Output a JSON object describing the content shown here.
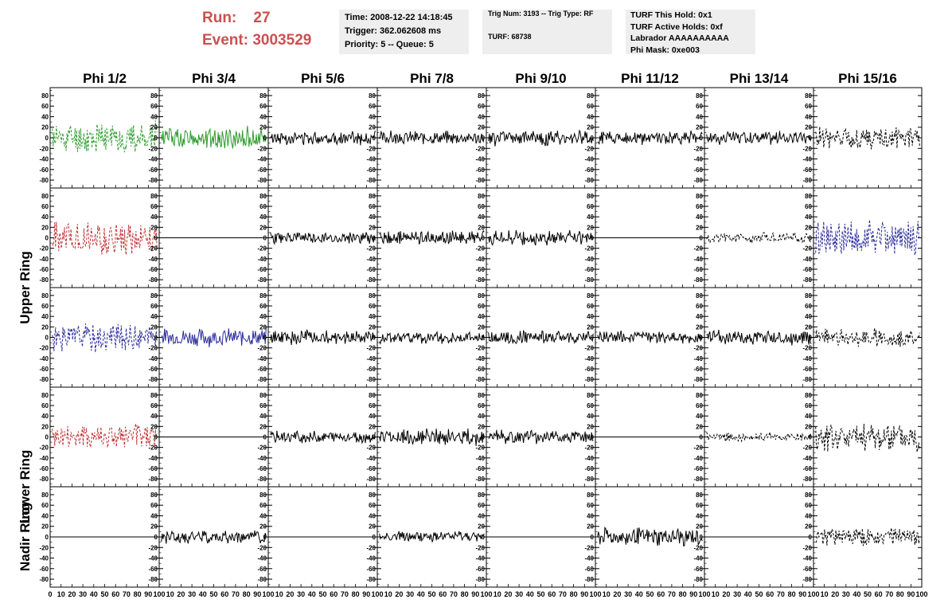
{
  "header": {
    "run_label": "Run:",
    "run_value": "27",
    "event_label": "Event:",
    "event_value": "3003529",
    "box1": [
      "Time: 2008-12-22 14:18:45",
      "Trigger: 362.062608 ms",
      "Priority: 5 -- Queue: 5"
    ],
    "box2": [
      "Trig Num: 3193 -- Trig Type: RF",
      "TURF: 68738"
    ],
    "box3": [
      "TURF This Hold: 0x1",
      "TURF Active Holds: 0xf",
      "Labrador AAAAAAAAAA",
      "Phi Mask: 0xe003"
    ]
  },
  "colors": {
    "run_event": "#cc5050",
    "green": "#2e9b2e",
    "red": "#c03030",
    "blue": "#2a2a9a",
    "black": "#000000",
    "box_bg": "#eeeeee"
  },
  "chart_data": {
    "type": "line",
    "columns": [
      "Phi 1/2",
      "Phi 3/4",
      "Phi 5/6",
      "Phi 7/8",
      "Phi 9/10",
      "Phi 11/12",
      "Phi 13/14",
      "Phi 15/16"
    ],
    "ring_labels": [
      "Upper Ring",
      "Lower Ring",
      "Nadir Ring"
    ],
    "ylim": [
      -95,
      95
    ],
    "xlim": [
      0,
      100
    ],
    "y_ticks": [
      80,
      60,
      40,
      20,
      0,
      -20,
      -40,
      -60,
      -80
    ],
    "y_tick_labels": [
      "80",
      "60",
      "40",
      "20",
      "0",
      "-20",
      "-40",
      "-60",
      "-80"
    ],
    "x_tick_labels_first": [
      "0",
      "10",
      "20",
      "30",
      "40",
      "50",
      "60",
      "70",
      "80",
      "90",
      "100"
    ],
    "x_tick_labels": [
      "10",
      "20",
      "30",
      "40",
      "50",
      "60",
      "70",
      "80",
      "90",
      "100"
    ],
    "panels": [
      [
        {
          "color": "green",
          "dash": true,
          "amp": 28,
          "seed": 11
        },
        {
          "color": "green",
          "dash": false,
          "amp": 20,
          "seed": 12
        },
        {
          "color": "black",
          "dash": false,
          "amp": 12,
          "seed": 13
        },
        {
          "color": "black",
          "dash": false,
          "amp": 12,
          "seed": 14
        },
        {
          "color": "black",
          "dash": false,
          "amp": 14,
          "seed": 15
        },
        {
          "color": "black",
          "dash": false,
          "amp": 12,
          "seed": 16
        },
        {
          "color": "black",
          "dash": false,
          "amp": 12,
          "seed": 17
        },
        {
          "color": "black",
          "dash": true,
          "amp": 20,
          "seed": 18
        }
      ],
      [
        {
          "color": "red",
          "dash": true,
          "amp": 30,
          "seed": 21
        },
        {
          "color": "black",
          "dash": false,
          "amp": 0,
          "seed": 22
        },
        {
          "color": "black",
          "dash": false,
          "amp": 11,
          "seed": 23
        },
        {
          "color": "black",
          "dash": false,
          "amp": 13,
          "seed": 24
        },
        {
          "color": "black",
          "dash": false,
          "amp": 13,
          "seed": 25
        },
        {
          "color": "black",
          "dash": false,
          "amp": 0,
          "seed": 26
        },
        {
          "color": "black",
          "dash": true,
          "amp": 9,
          "seed": 27
        },
        {
          "color": "blue",
          "dash": true,
          "amp": 34,
          "seed": 28
        }
      ],
      [
        {
          "color": "blue",
          "dash": true,
          "amp": 26,
          "seed": 31
        },
        {
          "color": "blue",
          "dash": false,
          "amp": 16,
          "seed": 32
        },
        {
          "color": "black",
          "dash": false,
          "amp": 13,
          "seed": 33
        },
        {
          "color": "black",
          "dash": false,
          "amp": 11,
          "seed": 34
        },
        {
          "color": "black",
          "dash": false,
          "amp": 12,
          "seed": 35
        },
        {
          "color": "black",
          "dash": false,
          "amp": 11,
          "seed": 36
        },
        {
          "color": "black",
          "dash": false,
          "amp": 14,
          "seed": 37
        },
        {
          "color": "black",
          "dash": true,
          "amp": 16,
          "seed": 38
        }
      ],
      [
        {
          "color": "red",
          "dash": true,
          "amp": 24,
          "seed": 41
        },
        {
          "color": "black",
          "dash": false,
          "amp": 0,
          "seed": 42
        },
        {
          "color": "black",
          "dash": false,
          "amp": 11,
          "seed": 43
        },
        {
          "color": "black",
          "dash": false,
          "amp": 15,
          "seed": 44
        },
        {
          "color": "black",
          "dash": false,
          "amp": 12,
          "seed": 45
        },
        {
          "color": "black",
          "dash": false,
          "amp": 0,
          "seed": 46
        },
        {
          "color": "black",
          "dash": true,
          "amp": 8,
          "seed": 47
        },
        {
          "color": "black",
          "dash": true,
          "amp": 28,
          "seed": 48
        }
      ],
      [
        {
          "color": "black",
          "dash": false,
          "amp": 0,
          "seed": 51
        },
        {
          "color": "black",
          "dash": false,
          "amp": 12,
          "seed": 52
        },
        {
          "color": "black",
          "dash": false,
          "amp": 0,
          "seed": 53
        },
        {
          "color": "black",
          "dash": false,
          "amp": 10,
          "seed": 54
        },
        {
          "color": "black",
          "dash": false,
          "amp": 0,
          "seed": 55
        },
        {
          "color": "black",
          "dash": false,
          "amp": 16,
          "seed": 56
        },
        {
          "color": "black",
          "dash": false,
          "amp": 0,
          "seed": 57
        },
        {
          "color": "black",
          "dash": true,
          "amp": 16,
          "seed": 58
        }
      ]
    ]
  }
}
